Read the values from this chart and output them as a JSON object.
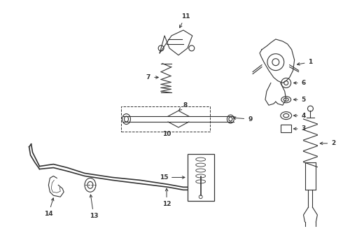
{
  "bg_color": "#ffffff",
  "line_color": "#333333",
  "fig_width": 4.9,
  "fig_height": 3.6,
  "dpi": 100
}
